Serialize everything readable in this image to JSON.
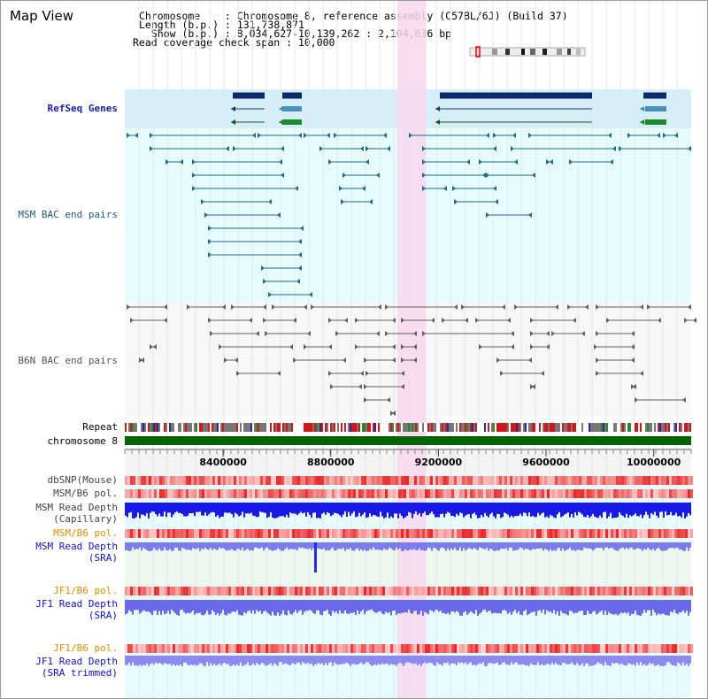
{
  "page_title": "Map View",
  "header": {
    "chromosome_line": "Chromosome    : Chromosome 8, reference assembly (C57BL/6J) (Build 37)",
    "length_line": "Length (b.p.) : 131,738,871",
    "show_line": "  Show (b.p.) : 8,034,627-10,139,262 : 2,104,636 bp",
    "span_line": "Read coverage check span : 10,000"
  },
  "tracks": {
    "refseq": "RefSeq Genes",
    "msm_bac": "MSM BAC end pairs",
    "b6n_bac": "B6N BAC end pairs",
    "repeat": "Repeat",
    "chromosome": "chromosome 8",
    "dbsnp": "dbSNP(Mouse)",
    "msm_b6_pol_1": "MSM/B6 pol.",
    "msm_read_depth_cap": "MSM Read Depth",
    "msm_read_depth_cap_sub": "(Capillary)",
    "msm_b6_pol_2": "MSM/B6 pol.",
    "msm_read_depth_sra": "MSM Read Depth",
    "msm_read_depth_sra_sub": "(SRA)",
    "jf1_b6_pol_1": "JF1/B6 pol.",
    "jf1_read_depth_sra": "JF1 Read Depth",
    "jf1_read_depth_sra_sub": "(SRA)",
    "jf1_b6_pol_2": "JF1/B6 pol.",
    "jf1_read_depth_trim": "JF1 Read Depth",
    "jf1_read_depth_trim_sub": "(SRA trimmed)"
  },
  "axis": {
    "ticks": [
      "8400000",
      "8800000",
      "9200000",
      "9600000",
      "10000000"
    ],
    "tick_values": [
      8400000,
      8800000,
      9200000,
      9600000,
      10000000
    ],
    "range": [
      8034627,
      10139262
    ]
  },
  "highlight_region": [
    9047000,
    9155000
  ],
  "colors": {
    "refseq_label": "#1e1ea0",
    "msm_label": "#1e5a78",
    "b6n_label": "#555555",
    "pol_label_orange": "#e08c00",
    "read_depth_blue": "#1010c8",
    "highlight": "#f8d8f0",
    "chromosome_bar": "#006400"
  }
}
